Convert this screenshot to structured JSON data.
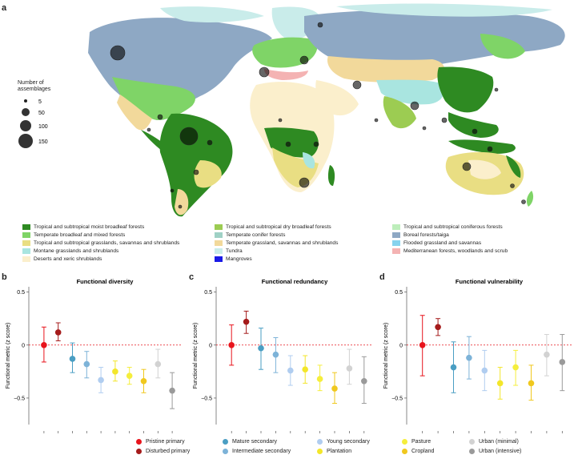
{
  "panel_letters": {
    "a": "a",
    "b": "b",
    "c": "c",
    "d": "d"
  },
  "size_legend": {
    "title_line1": "Number of",
    "title_line2": "assemblages",
    "sizes": [
      "5",
      "50",
      "100",
      "150"
    ]
  },
  "biome_legend": [
    {
      "label": "Tropical and subtropical moist broadleaf forests",
      "color": "#2e8a22"
    },
    {
      "label": "Temperate broadleaf and mixed forests",
      "color": "#7fd467"
    },
    {
      "label": "Tropical and subtropical grasslands, savannas and shrublands",
      "color": "#e9de83"
    },
    {
      "label": "Montane grasslands and shrublands",
      "color": "#a9e5e0"
    },
    {
      "label": "Deserts and xeric shrublands",
      "color": "#fbefcc"
    },
    {
      "label": "Tropical and subtropical dry broadleaf forests",
      "color": "#9ccc52"
    },
    {
      "label": "Temperate conifer forests",
      "color": "#9fd1c5"
    },
    {
      "label": "Temperate grassland, savannas and shrublands",
      "color": "#f2d99b"
    },
    {
      "label": "Tundra",
      "color": "#c9ecea"
    },
    {
      "label": "Mangroves",
      "color": "#1a1ae6"
    },
    {
      "label": "Tropical and subtropical coniferous forests",
      "color": "#bdeebb"
    },
    {
      "label": "Boreal forests/taiga",
      "color": "#8ea8c4"
    },
    {
      "label": "Flooded grassland and savannas",
      "color": "#87d3ee"
    },
    {
      "label": "Mediterranean forests, woodlands and scrub",
      "color": "#f4b3b3"
    }
  ],
  "chart_data": [
    {
      "type": "scatter",
      "title": "Functional diversity",
      "ylabel": "Functional metric (z score)",
      "ylim": [
        -0.75,
        0.55
      ],
      "yticks": [
        "0.5",
        "0",
        "−0.5"
      ],
      "categories": [
        "Pristine primary",
        "Disturbed primary",
        "Mature secondary",
        "Intermediate secondary",
        "Young secondary",
        "Plantation",
        "Pasture",
        "Cropland",
        "Urban (minimal)",
        "Urban (intensive)"
      ],
      "values": [
        0.0,
        0.12,
        -0.13,
        -0.18,
        -0.33,
        -0.25,
        -0.29,
        -0.34,
        -0.18,
        -0.43
      ],
      "lower": [
        -0.16,
        0.04,
        -0.26,
        -0.31,
        -0.45,
        -0.34,
        -0.37,
        -0.45,
        -0.31,
        -0.6
      ],
      "upper": [
        0.17,
        0.21,
        0.02,
        -0.06,
        -0.21,
        -0.15,
        -0.21,
        -0.23,
        -0.04,
        -0.26
      ],
      "reference_line": 0
    },
    {
      "type": "scatter",
      "title": "Functional redundancy",
      "ylabel": "Functional metric (z score)",
      "ylim": [
        -0.75,
        0.55
      ],
      "yticks": [
        "0.5",
        "0",
        "−0.5"
      ],
      "categories": [
        "Pristine primary",
        "Disturbed primary",
        "Mature secondary",
        "Intermediate secondary",
        "Young secondary",
        "Plantation",
        "Pasture",
        "Cropland",
        "Urban (minimal)",
        "Urban (intensive)"
      ],
      "values": [
        0.0,
        0.22,
        -0.03,
        -0.09,
        -0.24,
        -0.23,
        -0.32,
        -0.41,
        -0.22,
        -0.34
      ],
      "lower": [
        -0.19,
        0.11,
        -0.23,
        -0.26,
        -0.38,
        -0.36,
        -0.43,
        -0.55,
        -0.37,
        -0.55
      ],
      "upper": [
        0.19,
        0.32,
        0.16,
        0.07,
        -0.1,
        -0.1,
        -0.19,
        -0.26,
        -0.04,
        -0.11
      ],
      "reference_line": 0
    },
    {
      "type": "scatter",
      "title": "Functional vulnerability",
      "ylabel": "Functional metric (z score)",
      "ylim": [
        -0.75,
        0.55
      ],
      "yticks": [
        "0.5",
        "0",
        "−0.5"
      ],
      "categories": [
        "Pristine primary",
        "Disturbed primary",
        "Mature secondary",
        "Intermediate secondary",
        "Young secondary",
        "Plantation",
        "Pasture",
        "Cropland",
        "Urban (minimal)",
        "Urban (intensive)"
      ],
      "values": [
        0.0,
        0.17,
        -0.21,
        -0.12,
        -0.24,
        -0.36,
        -0.21,
        -0.36,
        -0.09,
        -0.16
      ],
      "lower": [
        -0.29,
        0.09,
        -0.45,
        -0.32,
        -0.43,
        -0.51,
        -0.38,
        -0.52,
        -0.29,
        -0.43
      ],
      "upper": [
        0.28,
        0.25,
        0.03,
        0.08,
        -0.05,
        -0.21,
        -0.05,
        -0.19,
        0.1,
        0.1
      ],
      "reference_line": 0
    }
  ],
  "category_legend": [
    {
      "label": "Pristine primary",
      "color": "#e8141c"
    },
    {
      "label": "Disturbed primary",
      "color": "#a51b1b"
    },
    {
      "label": "Mature secondary",
      "color": "#4a9ec3"
    },
    {
      "label": "Intermediate secondary",
      "color": "#7db3d8"
    },
    {
      "label": "Young secondary",
      "color": "#b0cdf0"
    },
    {
      "label": "Plantation",
      "color": "#f3e62a"
    },
    {
      "label": "Pasture",
      "color": "#f5ee3c"
    },
    {
      "label": "Cropland",
      "color": "#f0c81e"
    },
    {
      "label": "Urban (minimal)",
      "color": "#d2d2d2"
    },
    {
      "label": "Urban (intensive)",
      "color": "#9a9a9a"
    }
  ]
}
